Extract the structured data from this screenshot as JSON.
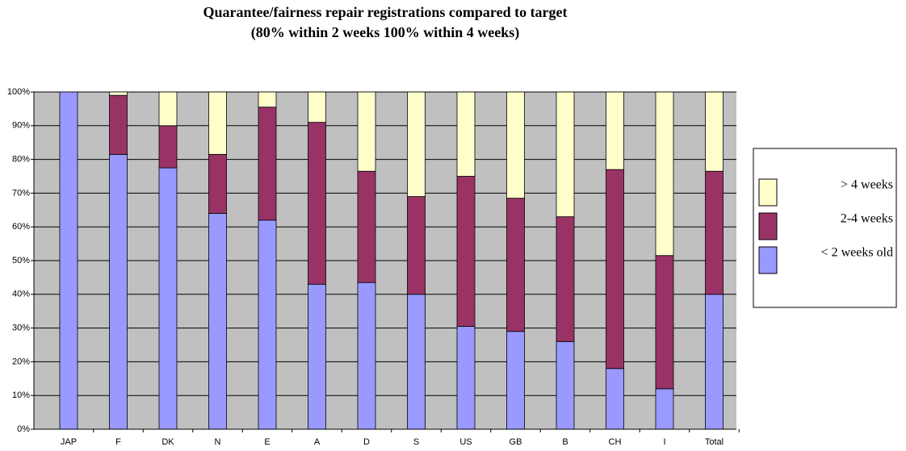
{
  "chart_data": {
    "type": "stacked-bar",
    "title": "Quarantee/fairness repair registrations compared to target",
    "subtitle": "(80% within 2 weeks 100% within 4 weeks)",
    "categories": [
      "JAP",
      "F",
      "DK",
      "N",
      "E",
      "A",
      "D",
      "S",
      "US",
      "GB",
      "B",
      "CH",
      "I",
      "Total"
    ],
    "series": [
      {
        "name": "< 2 weeks old",
        "color": "#9999ff",
        "values": [
          100,
          81.5,
          77.5,
          64,
          62,
          43,
          43.5,
          40,
          30.5,
          29,
          26,
          18,
          12,
          40
        ]
      },
      {
        "name": "2-4 weeks",
        "color": "#993366",
        "values": [
          0,
          17.5,
          12.5,
          17.5,
          33.5,
          48,
          33,
          29,
          44.5,
          39.5,
          37,
          59,
          39.5,
          36.5
        ]
      },
      {
        "name": "> 4 weeks",
        "color": "#ffffcc",
        "values": [
          0,
          1,
          10,
          18.5,
          4.5,
          9,
          23.5,
          31,
          25,
          31.5,
          37,
          23,
          48.5,
          23.5
        ]
      }
    ],
    "ylim": [
      0,
      100
    ],
    "yticks": [
      {
        "value": 0,
        "label": "0%"
      },
      {
        "value": 10,
        "label": "10%"
      },
      {
        "value": 20,
        "label": "20%"
      },
      {
        "value": 30,
        "label": "30%"
      },
      {
        "value": 40,
        "label": "40%"
      },
      {
        "value": 50,
        "label": "50%"
      },
      {
        "value": 60,
        "label": "60%"
      },
      {
        "value": 70,
        "label": "70%"
      },
      {
        "value": 80,
        "label": "80%"
      },
      {
        "value": 90,
        "label": "90%"
      },
      {
        "value": 100,
        "label": "100%"
      }
    ],
    "grid": true,
    "legend": "right"
  }
}
